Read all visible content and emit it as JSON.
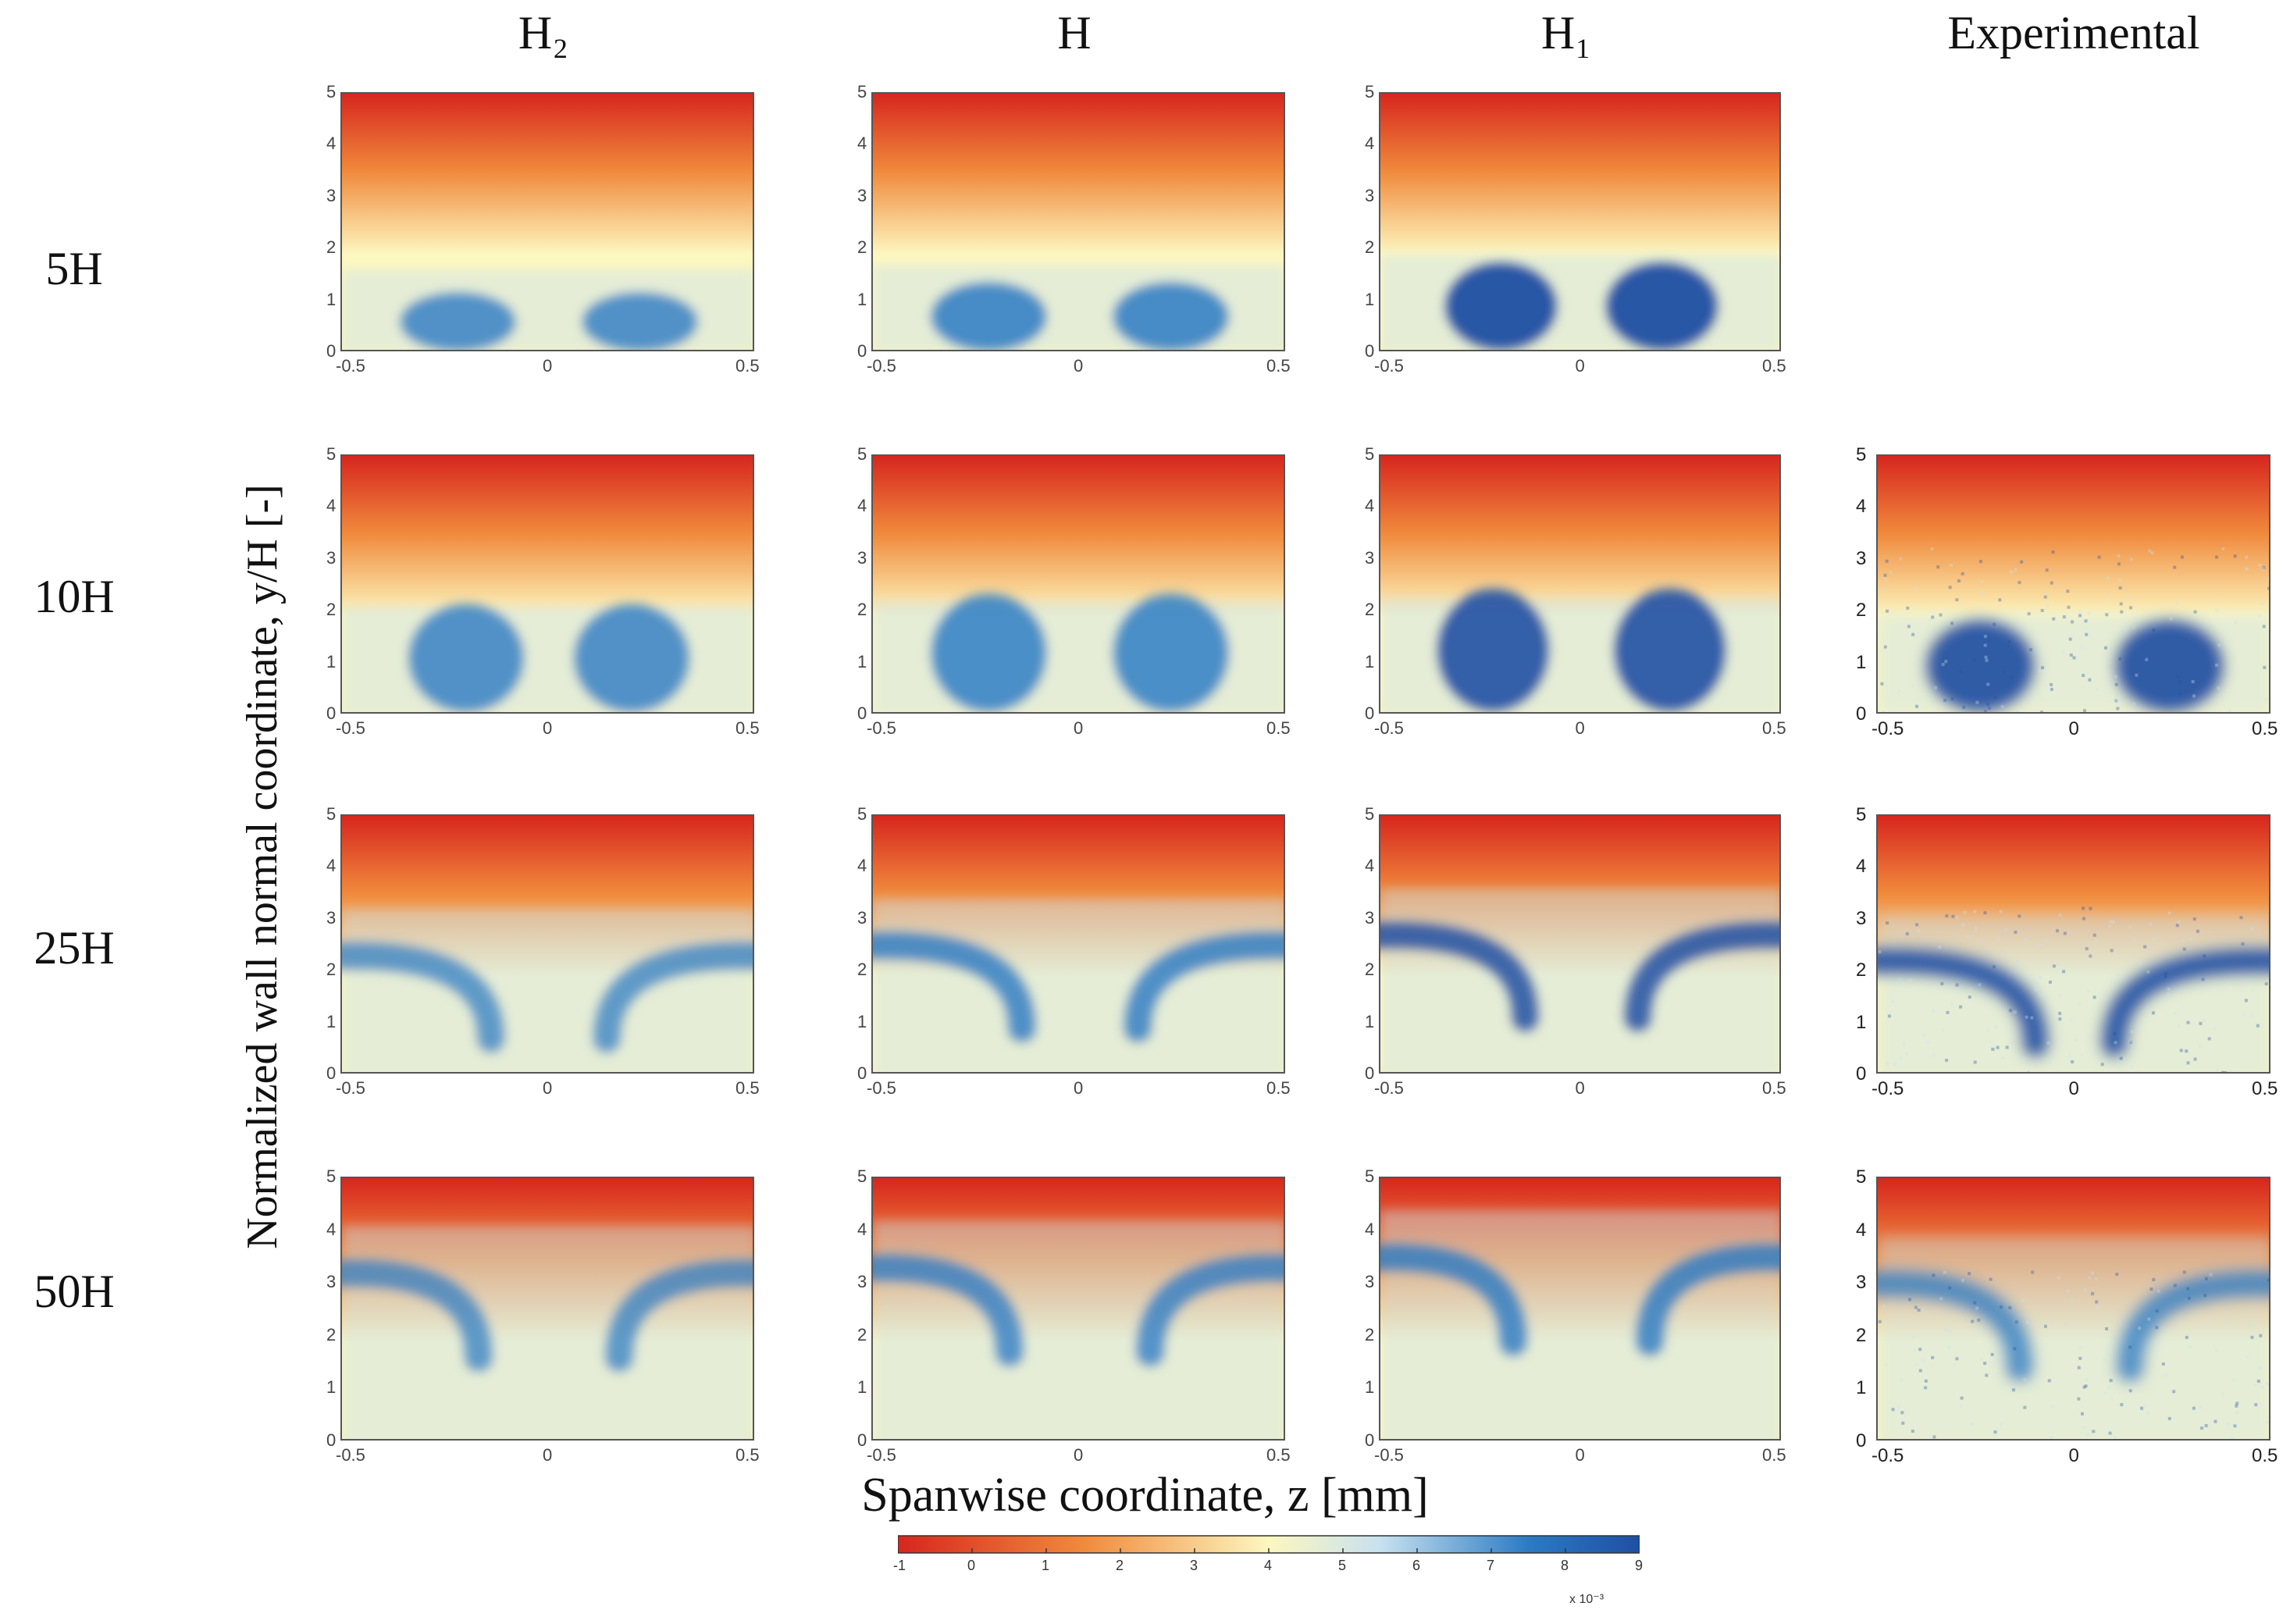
{
  "columns": [
    "H₂",
    "H",
    "H₁",
    "Experimental"
  ],
  "rows": [
    "5H",
    "10H",
    "25H",
    "50H"
  ],
  "y_title": "Normalized wall normal coordinate, y/H [-]",
  "x_title": "Spanwise coordinate, z [mm]",
  "colors": {
    "red": "#d7261e",
    "orange": "#f08a3c",
    "yellow": "#fdf7c0",
    "lightblue": "#c8e1ef",
    "blue": "#2b7bc4",
    "darkblue": "#1f4fa3"
  },
  "chart_data": {
    "type": "heatmap",
    "description_free": true,
    "x_ticks": [
      "-0.5",
      "0",
      "0.5"
    ],
    "y_ticks": [
      "0",
      "1",
      "2",
      "3",
      "4",
      "5"
    ],
    "x_range": [
      -0.5,
      0.5
    ],
    "y_range": [
      0,
      5
    ],
    "colorbar": {
      "ticks": [
        "-1",
        "0",
        "1",
        "2",
        "3",
        "4",
        "5",
        "6",
        "7",
        "8",
        "9"
      ],
      "range": [
        -1,
        9
      ],
      "exponent": "x 10⁻³"
    },
    "panels": [
      {
        "row": "5H",
        "column": "H₂",
        "structure": "vortex-pair",
        "vortex_height": 0.6,
        "vortex_z": 0.22,
        "intensity": 0.75
      },
      {
        "row": "5H",
        "column": "H",
        "structure": "vortex-pair",
        "vortex_height": 0.7,
        "vortex_z": 0.22,
        "intensity": 0.85
      },
      {
        "row": "5H",
        "column": "H₁",
        "structure": "vortex-pair",
        "vortex_height": 0.9,
        "vortex_z": 0.2,
        "intensity": 1.0
      },
      {
        "row": "10H",
        "column": "H₂",
        "structure": "vortex-pair",
        "vortex_height": 1.1,
        "vortex_z": 0.2,
        "intensity": 0.75
      },
      {
        "row": "10H",
        "column": "H",
        "structure": "vortex-pair",
        "vortex_height": 1.2,
        "vortex_z": 0.22,
        "intensity": 0.8
      },
      {
        "row": "10H",
        "column": "H₁",
        "structure": "vortex-pair",
        "vortex_height": 1.25,
        "vortex_z": 0.22,
        "intensity": 0.9
      },
      {
        "row": "10H",
        "column": "Experimental",
        "structure": "vortex-pair",
        "vortex_height": 0.95,
        "vortex_z": 0.24,
        "intensity": 0.95
      },
      {
        "row": "25H",
        "column": "H₂",
        "structure": "arc",
        "vortex_height": 2.3,
        "vortex_z": 0.42,
        "intensity": 0.7
      },
      {
        "row": "25H",
        "column": "H",
        "structure": "arc",
        "vortex_height": 2.5,
        "vortex_z": 0.42,
        "intensity": 0.85
      },
      {
        "row": "25H",
        "column": "H₁",
        "structure": "arc",
        "vortex_height": 2.7,
        "vortex_z": 0.42,
        "intensity": 0.9
      },
      {
        "row": "25H",
        "column": "Experimental",
        "structure": "arc",
        "vortex_height": 2.2,
        "vortex_z": 0.38,
        "intensity": 0.95
      },
      {
        "row": "50H",
        "column": "H₂",
        "structure": "arc",
        "vortex_height": 3.2,
        "vortex_z": 0.45,
        "intensity": 0.7
      },
      {
        "row": "50H",
        "column": "H",
        "structure": "arc",
        "vortex_height": 3.3,
        "vortex_z": 0.45,
        "intensity": 0.8
      },
      {
        "row": "50H",
        "column": "H₁",
        "structure": "arc",
        "vortex_height": 3.5,
        "vortex_z": 0.45,
        "intensity": 0.85
      },
      {
        "row": "50H",
        "column": "Experimental",
        "structure": "arc",
        "vortex_height": 3.0,
        "vortex_z": 0.42,
        "intensity": 0.75
      }
    ]
  }
}
